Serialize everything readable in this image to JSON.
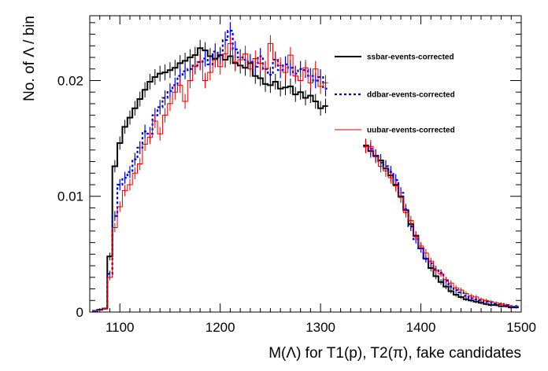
{
  "chart_data": {
    "type": "line",
    "title": "",
    "xlabel": "M(Λ) for T1(p), T2(π), fake candidates",
    "ylabel": "No. of Λ / bin",
    "xlim": [
      1070,
      1500
    ],
    "ylim": [
      0,
      0.0256
    ],
    "x_ticks": [
      1100,
      1200,
      1300,
      1400,
      1500
    ],
    "y_ticks": [
      0,
      0.01,
      0.02
    ],
    "x_tick_labels": [
      "1100",
      "1200",
      "1300",
      "1400",
      "1500"
    ],
    "y_tick_labels": [
      "0",
      "0.01",
      "0.02"
    ],
    "grid": false,
    "legend_position": "top-right",
    "series": [
      {
        "name": "ssbar-events-corrected",
        "color": "#000000",
        "style": "solid",
        "x": [
          1075,
          1080,
          1085,
          1090,
          1095,
          1100,
          1105,
          1110,
          1115,
          1120,
          1125,
          1130,
          1135,
          1140,
          1145,
          1150,
          1155,
          1160,
          1165,
          1170,
          1175,
          1180,
          1185,
          1190,
          1195,
          1200,
          1205,
          1210,
          1215,
          1220,
          1225,
          1230,
          1235,
          1240,
          1245,
          1250,
          1255,
          1260,
          1265,
          1270,
          1275,
          1280,
          1285,
          1290,
          1295,
          1300,
          1305,
          1345,
          1350,
          1355,
          1360,
          1365,
          1370,
          1375,
          1380,
          1385,
          1390,
          1395,
          1400,
          1405,
          1410,
          1415,
          1420,
          1425,
          1430,
          1435,
          1440,
          1445,
          1450,
          1455,
          1460,
          1465,
          1470,
          1475,
          1480,
          1485,
          1490,
          1495
        ],
        "y": [
          0.0001,
          0.0002,
          0.0003,
          0.0048,
          0.0126,
          0.0146,
          0.016,
          0.0168,
          0.0176,
          0.0184,
          0.0192,
          0.0199,
          0.0203,
          0.0206,
          0.0207,
          0.0209,
          0.0211,
          0.0215,
          0.0217,
          0.022,
          0.0222,
          0.0228,
          0.0226,
          0.0221,
          0.0219,
          0.0222,
          0.0218,
          0.0221,
          0.0215,
          0.0213,
          0.0211,
          0.0215,
          0.0204,
          0.0202,
          0.0197,
          0.0196,
          0.0199,
          0.0193,
          0.0194,
          0.0195,
          0.0188,
          0.019,
          0.0185,
          0.0187,
          0.0182,
          0.0176,
          0.0178,
          0.0144,
          0.0139,
          0.0135,
          0.0131,
          0.0124,
          0.0118,
          0.011,
          0.01,
          0.0088,
          0.0076,
          0.0066,
          0.0055,
          0.0046,
          0.0038,
          0.0031,
          0.0026,
          0.0022,
          0.0018,
          0.0015,
          0.0013,
          0.0011,
          0.001,
          0.0009,
          0.0008,
          0.0007,
          0.0006,
          0.0006,
          0.0005,
          0.0005,
          0.0004,
          0.0004
        ]
      },
      {
        "name": "ddbar-events-corrected",
        "color": "#0000dd",
        "style": "dotted",
        "x": [
          1075,
          1080,
          1085,
          1090,
          1095,
          1100,
          1105,
          1110,
          1115,
          1120,
          1125,
          1130,
          1135,
          1140,
          1145,
          1150,
          1155,
          1160,
          1165,
          1170,
          1175,
          1180,
          1185,
          1190,
          1195,
          1200,
          1205,
          1210,
          1215,
          1220,
          1225,
          1230,
          1235,
          1240,
          1245,
          1250,
          1255,
          1260,
          1265,
          1270,
          1275,
          1280,
          1285,
          1290,
          1295,
          1300,
          1305,
          1345,
          1350,
          1355,
          1360,
          1365,
          1370,
          1375,
          1380,
          1385,
          1390,
          1395,
          1400,
          1405,
          1410,
          1415,
          1420,
          1425,
          1430,
          1435,
          1440,
          1445,
          1450,
          1455,
          1460,
          1465,
          1470,
          1475,
          1480,
          1485,
          1490,
          1495
        ],
        "y": [
          0.0001,
          0.0002,
          0.0003,
          0.0033,
          0.0083,
          0.011,
          0.0116,
          0.0121,
          0.0132,
          0.0142,
          0.0156,
          0.0154,
          0.017,
          0.0177,
          0.0185,
          0.0191,
          0.0196,
          0.0204,
          0.0208,
          0.021,
          0.0213,
          0.0216,
          0.0219,
          0.0214,
          0.0225,
          0.0221,
          0.0235,
          0.0243,
          0.0227,
          0.022,
          0.0218,
          0.0216,
          0.0212,
          0.0221,
          0.021,
          0.0205,
          0.0218,
          0.0209,
          0.0214,
          0.0211,
          0.0206,
          0.021,
          0.0209,
          0.0204,
          0.02,
          0.0203,
          0.0193,
          0.0143,
          0.0141,
          0.0135,
          0.0129,
          0.0126,
          0.0121,
          0.0114,
          0.0103,
          0.0089,
          0.0074,
          0.0063,
          0.0055,
          0.0046,
          0.0042,
          0.0037,
          0.0034,
          0.0027,
          0.0022,
          0.0019,
          0.0017,
          0.0014,
          0.0012,
          0.0011,
          0.001,
          0.0009,
          0.0008,
          0.0007,
          0.0007,
          0.0006,
          0.0005,
          0.0005
        ]
      },
      {
        "name": "uubar-events-corrected",
        "color": "#dd0000",
        "style": "solid",
        "x": [
          1075,
          1080,
          1085,
          1090,
          1095,
          1100,
          1105,
          1110,
          1115,
          1120,
          1125,
          1130,
          1135,
          1140,
          1145,
          1150,
          1155,
          1160,
          1165,
          1170,
          1175,
          1180,
          1185,
          1190,
          1195,
          1200,
          1205,
          1210,
          1215,
          1220,
          1225,
          1230,
          1235,
          1240,
          1245,
          1250,
          1255,
          1260,
          1265,
          1270,
          1275,
          1280,
          1285,
          1290,
          1295,
          1300,
          1305,
          1345,
          1350,
          1355,
          1360,
          1365,
          1370,
          1375,
          1380,
          1385,
          1390,
          1395,
          1400,
          1405,
          1410,
          1415,
          1420,
          1425,
          1430,
          1435,
          1440,
          1445,
          1450,
          1455,
          1460,
          1465,
          1470,
          1475,
          1480,
          1485,
          1490,
          1495
        ],
        "y": [
          0.0001,
          0.0002,
          0.0003,
          0.003,
          0.0073,
          0.0091,
          0.0105,
          0.011,
          0.012,
          0.0128,
          0.0145,
          0.0151,
          0.0165,
          0.0154,
          0.017,
          0.018,
          0.019,
          0.0196,
          0.0182,
          0.02,
          0.0212,
          0.0216,
          0.02,
          0.0207,
          0.0218,
          0.0212,
          0.0223,
          0.0232,
          0.0216,
          0.0218,
          0.0223,
          0.021,
          0.0219,
          0.0215,
          0.021,
          0.0232,
          0.0218,
          0.0213,
          0.0207,
          0.0222,
          0.0204,
          0.02,
          0.0211,
          0.0198,
          0.021,
          0.0195,
          0.0198,
          0.0143,
          0.0143,
          0.0134,
          0.0126,
          0.0122,
          0.0116,
          0.0109,
          0.0099,
          0.0086,
          0.0079,
          0.0065,
          0.0057,
          0.0051,
          0.0044,
          0.0036,
          0.0033,
          0.0028,
          0.0025,
          0.0021,
          0.0019,
          0.0016,
          0.0014,
          0.0013,
          0.0011,
          0.001,
          0.0009,
          0.0008,
          0.0007,
          0.0006,
          0.0005,
          0.0005
        ]
      }
    ]
  }
}
